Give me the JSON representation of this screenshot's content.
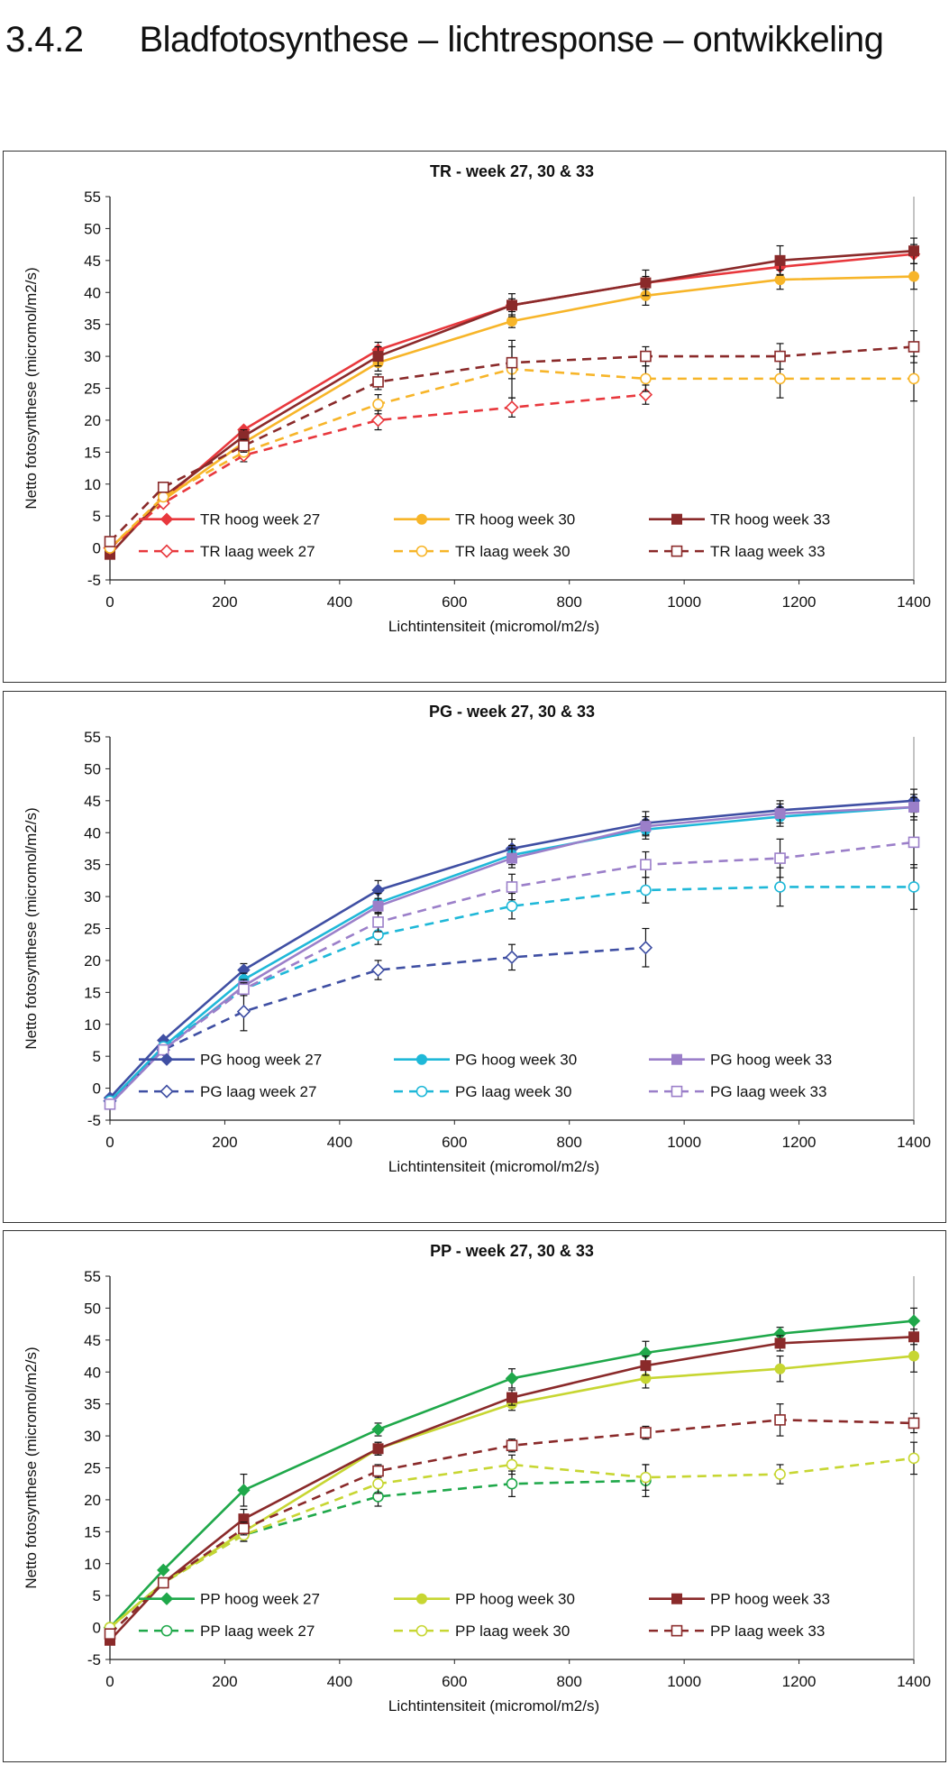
{
  "heading": {
    "number": "3.4.2",
    "title": "Bladfotosynthese – lichtresponse – ontwikkeling"
  },
  "chart_data": [
    {
      "type": "line",
      "title": "TR - week 27, 30 & 33",
      "xlabel": "Lichtintensiteit (micromol/m2/s)",
      "ylabel": "Netto fotosynthese (micromol/m2/s)",
      "xlim": [
        0,
        1400
      ],
      "ylim": [
        -5,
        55
      ],
      "xticks": [
        "0",
        "200",
        "400",
        "600",
        "800",
        "1000",
        "1200",
        "1400"
      ],
      "yticks": [
        "-5",
        "0",
        "5",
        "10",
        "15",
        "20",
        "25",
        "30",
        "35",
        "40",
        "45",
        "50",
        "55"
      ],
      "grid": false,
      "legend": "bottom inside",
      "series": [
        {
          "name": "TR hoog week 27",
          "color": "#e8383d",
          "dash": false,
          "marker": "diamond",
          "filled": true,
          "x": [
            0,
            93,
            233,
            467,
            700,
            933,
            1167,
            1400
          ],
          "y": [
            0,
            7.5,
            18.5,
            31,
            38,
            41.5,
            44,
            46
          ],
          "err": [
            0,
            0,
            0,
            1.2,
            1,
            1,
            1.2,
            1.5
          ]
        },
        {
          "name": "TR hoog week 30",
          "color": "#f7b529",
          "dash": false,
          "marker": "circle",
          "filled": true,
          "x": [
            0,
            93,
            233,
            467,
            700,
            933,
            1167,
            1400
          ],
          "y": [
            0,
            7.5,
            16.5,
            29,
            35.5,
            39.5,
            42,
            42.5
          ],
          "err": [
            0,
            0,
            0,
            1.3,
            1,
            1.5,
            1.5,
            2
          ]
        },
        {
          "name": "TR hoog week 33",
          "color": "#8a2a2a",
          "dash": false,
          "marker": "square",
          "filled": true,
          "x": [
            0,
            93,
            233,
            467,
            700,
            933,
            1167,
            1400
          ],
          "y": [
            -1,
            8,
            17.5,
            30,
            38,
            41.5,
            45,
            46.5
          ],
          "err": [
            0,
            0,
            1,
            1.5,
            1.8,
            2,
            2.3,
            2
          ]
        },
        {
          "name": "TR laag week 27",
          "color": "#e8383d",
          "dash": true,
          "marker": "diamond",
          "filled": false,
          "x": [
            0,
            93,
            233,
            467,
            700,
            933
          ],
          "y": [
            0,
            7,
            14.5,
            20,
            22,
            24
          ],
          "err": [
            0,
            0,
            1,
            1.5,
            1.5,
            1.5
          ]
        },
        {
          "name": "TR laag week 30",
          "color": "#f7b529",
          "dash": true,
          "marker": "circle",
          "filled": false,
          "x": [
            0,
            93,
            233,
            467,
            700,
            933,
            1167,
            1400
          ],
          "y": [
            0,
            8,
            15,
            22.5,
            28,
            26.5,
            26.5,
            26.5
          ],
          "err": [
            0,
            0,
            0,
            1.5,
            4.5,
            2,
            3,
            3.5
          ]
        },
        {
          "name": "TR laag week 33",
          "color": "#8a2a2a",
          "dash": true,
          "marker": "square",
          "filled": false,
          "x": [
            0,
            93,
            233,
            467,
            700,
            933,
            1167,
            1400
          ],
          "y": [
            1,
            9.5,
            16,
            26,
            29,
            30,
            30,
            31.5
          ],
          "err": [
            0,
            0,
            1,
            1.2,
            2.5,
            1.5,
            2,
            2.5
          ]
        }
      ]
    },
    {
      "type": "line",
      "title": "PG - week 27, 30 & 33",
      "xlabel": "Lichtintensiteit (micromol/m2/s)",
      "ylabel": "Netto fotosynthese (micromol/m2/s)",
      "xlim": [
        0,
        1400
      ],
      "ylim": [
        -5,
        55
      ],
      "xticks": [
        "0",
        "200",
        "400",
        "600",
        "800",
        "1000",
        "1200",
        "1400"
      ],
      "yticks": [
        "-5",
        "0",
        "5",
        "10",
        "15",
        "20",
        "25",
        "30",
        "35",
        "40",
        "45",
        "50",
        "55"
      ],
      "grid": false,
      "legend": "bottom inside",
      "series": [
        {
          "name": "PG hoog week 27",
          "color": "#3f4fa3",
          "dash": false,
          "marker": "diamond",
          "filled": true,
          "x": [
            0,
            93,
            233,
            467,
            700,
            933,
            1167,
            1400
          ],
          "y": [
            -1.5,
            7.5,
            18.5,
            31,
            37.5,
            41.5,
            43.5,
            45
          ],
          "err": [
            0,
            0,
            1,
            1.5,
            1.5,
            1.8,
            1.5,
            1.8
          ]
        },
        {
          "name": "PG hoog week 30",
          "color": "#1fb8d8",
          "dash": false,
          "marker": "circle",
          "filled": true,
          "x": [
            0,
            93,
            233,
            467,
            700,
            933,
            1167,
            1400
          ],
          "y": [
            -2,
            6.5,
            17,
            29,
            36.5,
            40.5,
            42.5,
            44
          ],
          "err": [
            0,
            0,
            1,
            1.5,
            1.5,
            1.5,
            1.5,
            1.5
          ]
        },
        {
          "name": "PG hoog week 33",
          "color": "#9b7fc9",
          "dash": false,
          "marker": "square",
          "filled": true,
          "x": [
            0,
            93,
            233,
            467,
            700,
            933,
            1167,
            1400
          ],
          "y": [
            -2.5,
            6,
            16,
            28.5,
            36,
            41,
            43,
            44
          ],
          "err": [
            0,
            0,
            1,
            1.2,
            1.5,
            1.5,
            1.5,
            2
          ]
        },
        {
          "name": "PG laag week 27",
          "color": "#3f4fa3",
          "dash": true,
          "marker": "diamond",
          "filled": false,
          "x": [
            0,
            93,
            233,
            467,
            700,
            933
          ],
          "y": [
            -2,
            6,
            12,
            18.5,
            20.5,
            22
          ],
          "err": [
            0,
            0,
            3,
            1.5,
            2,
            3
          ]
        },
        {
          "name": "PG laag week 30",
          "color": "#1fb8d8",
          "dash": true,
          "marker": "circle",
          "filled": false,
          "x": [
            0,
            93,
            233,
            467,
            700,
            933,
            1167,
            1400
          ],
          "y": [
            -2,
            6.5,
            15.5,
            24,
            28.5,
            31,
            31.5,
            31.5
          ],
          "err": [
            0,
            0,
            0,
            1.5,
            2,
            2,
            3,
            3.5
          ]
        },
        {
          "name": "PG laag week 33",
          "color": "#9b7fc9",
          "dash": true,
          "marker": "square",
          "filled": false,
          "x": [
            0,
            93,
            233,
            467,
            700,
            933,
            1167,
            1400
          ],
          "y": [
            -2.5,
            6,
            15.5,
            26,
            31.5,
            35,
            36,
            38.5
          ],
          "err": [
            0,
            0,
            1,
            1.5,
            2,
            2,
            3,
            4
          ]
        }
      ]
    },
    {
      "type": "line",
      "title": "PP - week 27, 30 & 33",
      "xlabel": "Lichtintensiteit (micromol/m2/s)",
      "ylabel": "Netto fotosynthese (micromol/m2/s)",
      "xlim": [
        0,
        1400
      ],
      "ylim": [
        -5,
        55
      ],
      "xticks": [
        "0",
        "200",
        "400",
        "600",
        "800",
        "1000",
        "1200",
        "1400"
      ],
      "yticks": [
        "-5",
        "0",
        "5",
        "10",
        "15",
        "20",
        "25",
        "30",
        "35",
        "40",
        "45",
        "50",
        "55"
      ],
      "grid": false,
      "legend": "bottom inside",
      "series": [
        {
          "name": "PP hoog week 27",
          "color": "#1fa84a",
          "dash": false,
          "marker": "diamond",
          "filled": true,
          "x": [
            0,
            93,
            233,
            467,
            700,
            933,
            1167,
            1400
          ],
          "y": [
            0,
            9,
            21.5,
            31,
            39,
            43,
            46,
            48
          ],
          "err": [
            0,
            0,
            2.5,
            1,
            1.5,
            1.8,
            1,
            2
          ]
        },
        {
          "name": "PP hoog week 30",
          "color": "#c7d632",
          "dash": false,
          "marker": "circle",
          "filled": true,
          "x": [
            0,
            93,
            233,
            467,
            700,
            933,
            1167,
            1400
          ],
          "y": [
            0,
            7,
            15,
            28,
            35,
            39,
            40.5,
            42.5
          ],
          "err": [
            0,
            0,
            1.5,
            1,
            1,
            1.5,
            2,
            2.5
          ]
        },
        {
          "name": "PP hoog week 33",
          "color": "#8a2a2a",
          "dash": false,
          "marker": "square",
          "filled": true,
          "x": [
            0,
            93,
            233,
            467,
            700,
            933,
            1167,
            1400
          ],
          "y": [
            -2,
            7,
            17,
            28,
            36,
            41,
            44.5,
            45.5
          ],
          "err": [
            0,
            0,
            1.5,
            1,
            1.2,
            1.5,
            1.2,
            1.2
          ]
        },
        {
          "name": "PP laag week 27",
          "color": "#1fa84a",
          "dash": true,
          "marker": "circle",
          "filled": false,
          "x": [
            0,
            93,
            233,
            467,
            700,
            933
          ],
          "y": [
            0,
            7,
            14.5,
            20.5,
            22.5,
            23
          ],
          "err": [
            0,
            0,
            1,
            1.5,
            2,
            2.5
          ]
        },
        {
          "name": "PP laag week 30",
          "color": "#c7d632",
          "dash": true,
          "marker": "circle",
          "filled": false,
          "x": [
            0,
            93,
            233,
            467,
            700,
            933,
            1167,
            1400
          ],
          "y": [
            0,
            7,
            14.5,
            22.5,
            25.5,
            23.5,
            24,
            26.5
          ],
          "err": [
            0,
            0,
            1,
            1.5,
            1.5,
            2,
            1.5,
            2.5
          ]
        },
        {
          "name": "PP laag week 33",
          "color": "#8a2a2a",
          "dash": true,
          "marker": "square",
          "filled": false,
          "x": [
            0,
            93,
            233,
            467,
            700,
            933,
            1167,
            1400
          ],
          "y": [
            -1,
            7,
            15.5,
            24.5,
            28.5,
            30.5,
            32.5,
            32
          ],
          "err": [
            0,
            0,
            1,
            1,
            1,
            1,
            2.5,
            1.5
          ]
        }
      ]
    }
  ]
}
